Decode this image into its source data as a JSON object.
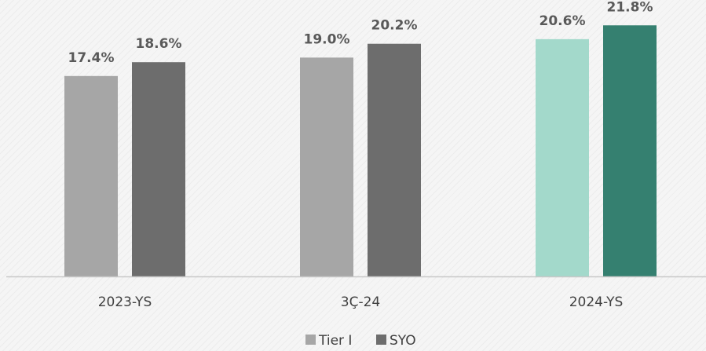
{
  "chart_data": {
    "type": "bar",
    "categories": [
      "2023-YS",
      "3Ç-24",
      "2024-YS"
    ],
    "series": [
      {
        "name": "Tier I",
        "values": [
          17.4,
          19.0,
          20.6
        ]
      },
      {
        "name": "SYO",
        "values": [
          18.6,
          20.2,
          21.8
        ]
      }
    ],
    "data_labels": [
      [
        "17.4%",
        "19.0%",
        "20.6%"
      ],
      [
        "18.6%",
        "20.2%",
        "21.8%"
      ]
    ],
    "colors": {
      "series": [
        "#a6a6a6",
        "#6d6d6d"
      ],
      "highlight_category": "2024-YS",
      "highlight_series": [
        "#a3d9cb",
        "#358070"
      ],
      "axis": "#c8c8c8"
    },
    "legend_position": "bottom",
    "grid": false,
    "ylim": [
      0,
      22.5
    ],
    "y_axis_visible": false
  }
}
